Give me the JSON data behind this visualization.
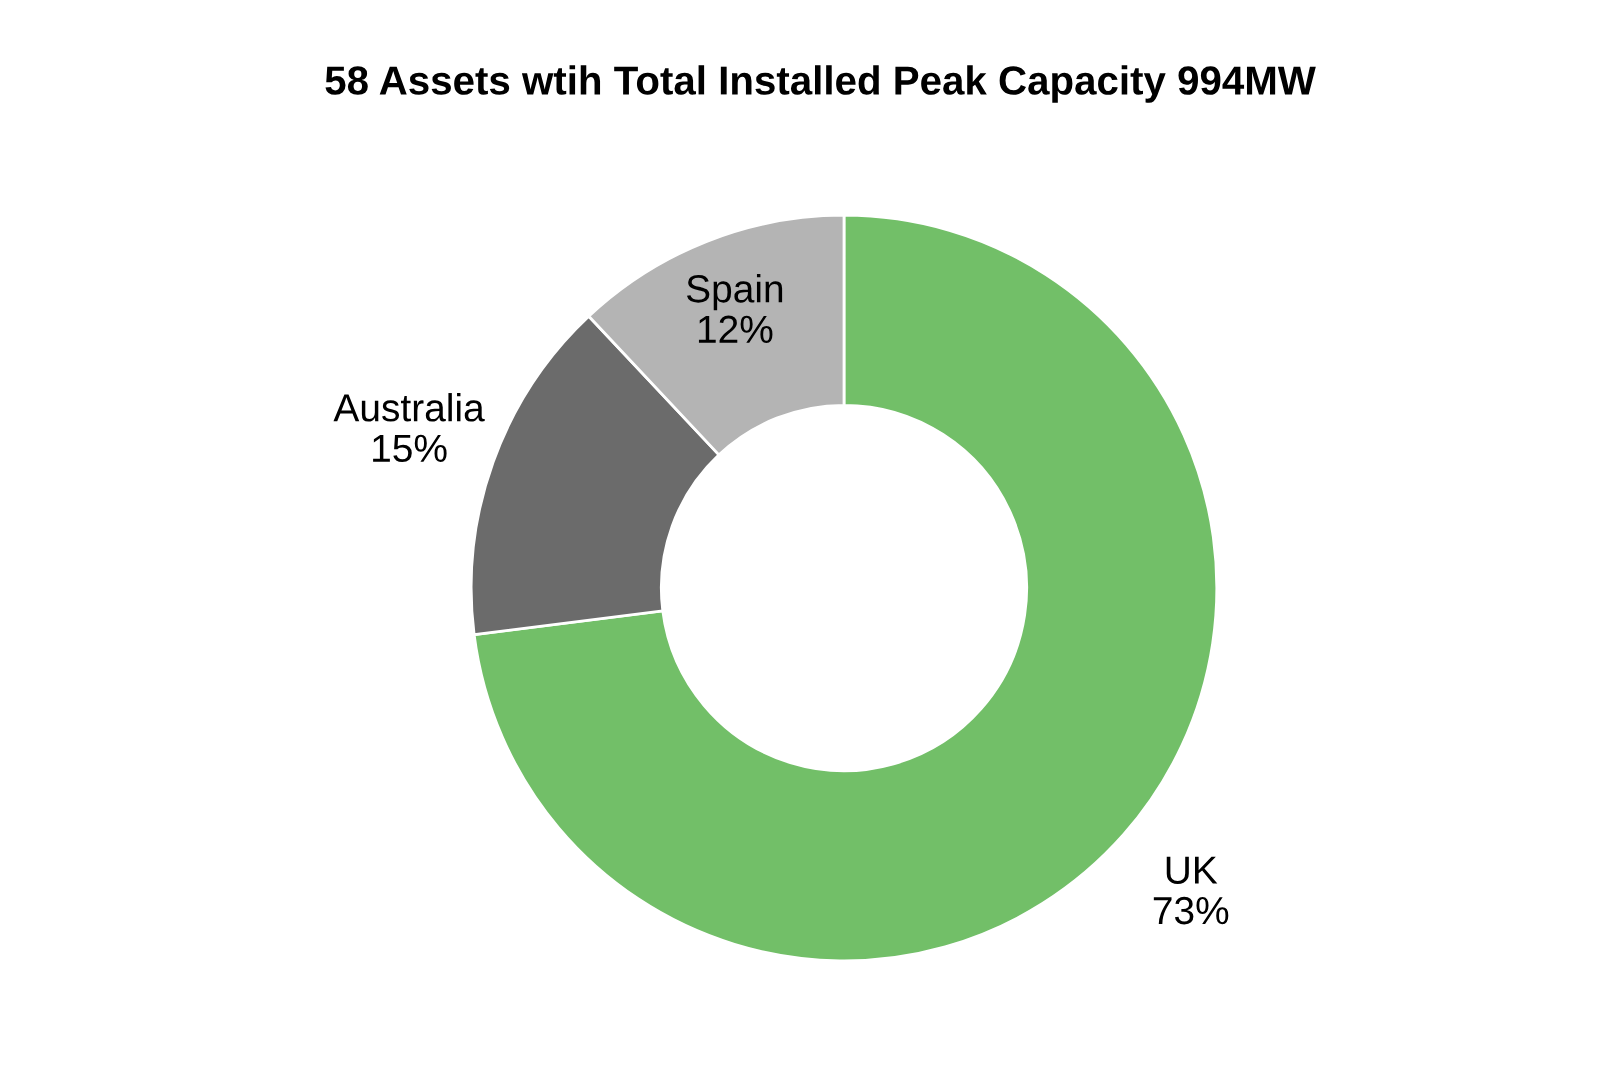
{
  "chart_data": {
    "type": "donut",
    "title": "58 Assets wtih Total Installed Peak Capacity 994MW",
    "categories": [
      "UK",
      "Australia",
      "Spain"
    ],
    "values": [
      73,
      15,
      12
    ],
    "colors": [
      "#72bf68",
      "#6b6b6b",
      "#b4b4b4"
    ],
    "value_labels": [
      "73%",
      "15%",
      "12%"
    ]
  }
}
